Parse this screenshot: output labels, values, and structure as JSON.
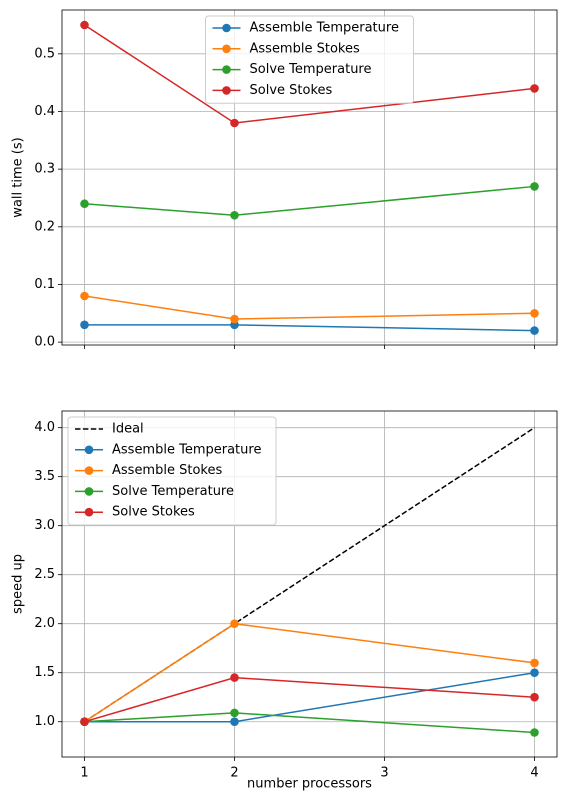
{
  "chart_data": [
    {
      "type": "line",
      "ylabel": "wall time (s)",
      "x": [
        1,
        2,
        4
      ],
      "xlim": [
        0.85,
        4.15
      ],
      "xticks": [
        1,
        2,
        3,
        4
      ],
      "xtick_labels": false,
      "ylim": [
        -0.005,
        0.576
      ],
      "yticks": [
        {
          "value": 0,
          "label": "0.0"
        },
        0.1,
        0.2,
        0.3,
        0.4,
        0.5
      ],
      "grid": true,
      "legend": "upper center",
      "series": [
        {
          "name": "Assemble Temperature",
          "color": "#1f77b4",
          "linestyle": "solid",
          "marker": "o",
          "values": [
            0.03,
            0.03,
            0.02
          ]
        },
        {
          "name": "Assemble Stokes",
          "color": "#ff7f0e",
          "linestyle": "solid",
          "marker": "o",
          "values": [
            0.08,
            0.04,
            0.05
          ]
        },
        {
          "name": "Solve Temperature",
          "color": "#2ca02c",
          "linestyle": "solid",
          "marker": "o",
          "values": [
            0.24,
            0.22,
            0.27
          ]
        },
        {
          "name": "Solve Stokes",
          "color": "#d62728",
          "linestyle": "solid",
          "marker": "o",
          "values": [
            0.55,
            0.38,
            0.44
          ]
        }
      ]
    },
    {
      "type": "line",
      "ylabel": "speed up",
      "xlabel": "number processors",
      "x": [
        1,
        2,
        4
      ],
      "xlim": [
        0.85,
        4.15
      ],
      "xticks": [
        1,
        2,
        3,
        4
      ],
      "xtick_labels": true,
      "ylim": [
        0.64,
        4.17
      ],
      "yticks": [
        {
          "value": 1,
          "label": "1.0"
        },
        1.5,
        {
          "value": 2,
          "label": "2.0"
        },
        2.5,
        {
          "value": 3,
          "label": "3.0"
        },
        3.5,
        {
          "value": 4,
          "label": "4.0"
        }
      ],
      "grid": true,
      "legend": "upper left",
      "series": [
        {
          "name": "Ideal",
          "color": "#000000",
          "linestyle": "dashed",
          "marker": "none",
          "values": [
            1,
            2,
            4
          ]
        },
        {
          "name": "Assemble Temperature",
          "color": "#1f77b4",
          "linestyle": "solid",
          "marker": "o",
          "values": [
            1,
            1,
            1.5
          ]
        },
        {
          "name": "Assemble Stokes",
          "color": "#ff7f0e",
          "linestyle": "solid",
          "marker": "o",
          "values": [
            1,
            2,
            1.6
          ]
        },
        {
          "name": "Solve Temperature",
          "color": "#2ca02c",
          "linestyle": "solid",
          "marker": "o",
          "values": [
            1,
            1.09,
            0.89
          ]
        },
        {
          "name": "Solve Stokes",
          "color": "#d62728",
          "linestyle": "solid",
          "marker": "o",
          "values": [
            1,
            1.45,
            1.25
          ]
        }
      ]
    }
  ]
}
